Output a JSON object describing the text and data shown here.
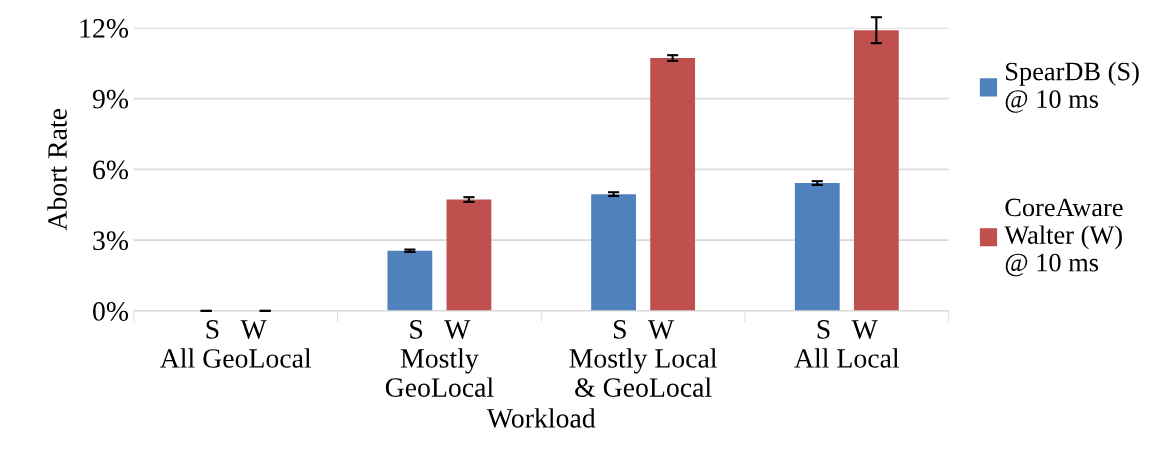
{
  "chart_data": {
    "type": "bar",
    "xlabel": "Workload",
    "ylabel": "Abort Rate",
    "categories": [
      "S   W\nAll GeoLocal",
      "S   W\nMostly\nGeoLocal",
      "S   W\nMostly Local\n& GeoLocal",
      "S   W\nAll Local"
    ],
    "series": [
      {
        "name": "SpearDB (S)\n@ 10 ms",
        "color": "#4f81bd",
        "values": [
          0,
          2.55,
          4.95,
          5.42
        ],
        "errors": [
          0,
          0.05,
          0.08,
          0.08
        ]
      },
      {
        "name": "CoreAware\nWalter (W)\n@ 10 ms",
        "color": "#c0504d",
        "values": [
          0,
          4.72,
          10.72,
          11.9
        ],
        "errors": [
          0,
          0.1,
          0.12,
          0.55
        ]
      }
    ],
    "ylim": [
      0,
      12
    ],
    "yticks": [
      {
        "value": 0,
        "label": "0%"
      },
      {
        "value": 3,
        "label": "3%"
      },
      {
        "value": 6,
        "label": "6%"
      },
      {
        "value": 9,
        "label": "9%"
      },
      {
        "value": 12,
        "label": "12%"
      }
    ],
    "grid": "y",
    "legend": "right"
  }
}
